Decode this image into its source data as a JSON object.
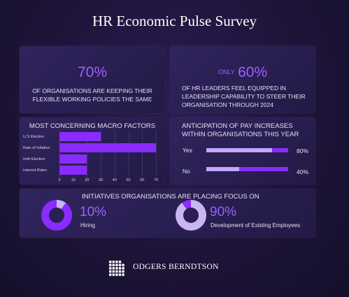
{
  "page": {
    "title": "HR Economic Pulse Survey"
  },
  "flexible": {
    "value": "70%",
    "text": "OF ORGANISATIONS ARE KEEPING THEIR FLEXIBLE WORKING POLICIES THE SAME"
  },
  "leaders": {
    "prefix": "ONLY",
    "value": "60%",
    "text": "OF HR LEADERS FEEL EQUIPPED IN LEADERSHIP CAPABILITY TO STEER THEIR ORGANISATION THROUGH 2024"
  },
  "macro": {
    "title": "MOST CONCERNING MACRO FACTORS"
  },
  "pay": {
    "title": "ANTICIPATION OF PAY INCREASES WITHIN ORGANISATIONS THIS YEAR",
    "rows": [
      {
        "label": "Yes",
        "value": 80,
        "pct": "80%"
      },
      {
        "label": "No",
        "value": 40,
        "pct": "40%"
      }
    ]
  },
  "initiatives": {
    "title": "INITIATIVES ORGANISATIONS ARE PLACING FOCUS ON",
    "items": [
      {
        "value": "10%",
        "label": "Hiring",
        "fraction": 0.1
      },
      {
        "value": "90%",
        "label": "Development of Existing Employees",
        "fraction": 0.9
      }
    ]
  },
  "colors": {
    "bar": "#8a2bff",
    "accent": "#9a62ff",
    "light": "#c5a6ff",
    "donut_light": "#c9b6f0"
  },
  "logo": {
    "name": "ODGERS BERNDTSON",
    "icon": "grid-logo-icon"
  },
  "chart_data": {
    "type": "bar",
    "orientation": "horizontal",
    "title": "MOST CONCERNING MACRO FACTORS",
    "categories": [
      "U.S Election",
      "Rate of Inflation",
      "Irish Election",
      "Interest Rates"
    ],
    "values": [
      30,
      70,
      20,
      20
    ],
    "xlim": [
      0,
      70
    ],
    "xticks": [
      "0",
      "10",
      "20",
      "30",
      "40",
      "50",
      "60",
      "70"
    ],
    "grid": true
  }
}
